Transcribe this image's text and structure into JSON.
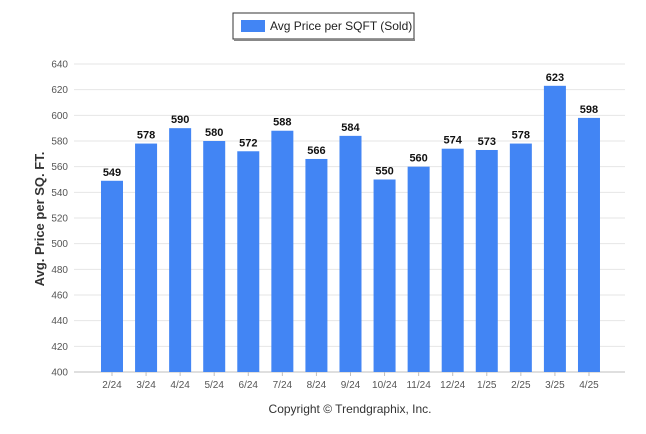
{
  "chart_data": {
    "type": "bar",
    "title": "",
    "xlabel": "",
    "ylabel": "Avg. Price per SQ. FT.",
    "categories": [
      "2/24",
      "3/24",
      "4/24",
      "5/24",
      "6/24",
      "7/24",
      "8/24",
      "9/24",
      "10/24",
      "11/24",
      "12/24",
      "1/25",
      "2/25",
      "3/25",
      "4/25"
    ],
    "series": [
      {
        "name": "Avg Price per SQFT (Sold)",
        "color": "#4285f4",
        "values": [
          549,
          578,
          590,
          580,
          572,
          588,
          566,
          584,
          550,
          560,
          574,
          573,
          578,
          623,
          598
        ]
      }
    ],
    "ylim": [
      400,
      640
    ],
    "yticks": [
      400,
      420,
      440,
      460,
      480,
      500,
      520,
      540,
      560,
      580,
      600,
      620,
      640
    ],
    "grid": true,
    "legend_position": "top-center",
    "data_labels": true
  },
  "footer": {
    "copyright": "Copyright © Trendgraphix, Inc."
  }
}
